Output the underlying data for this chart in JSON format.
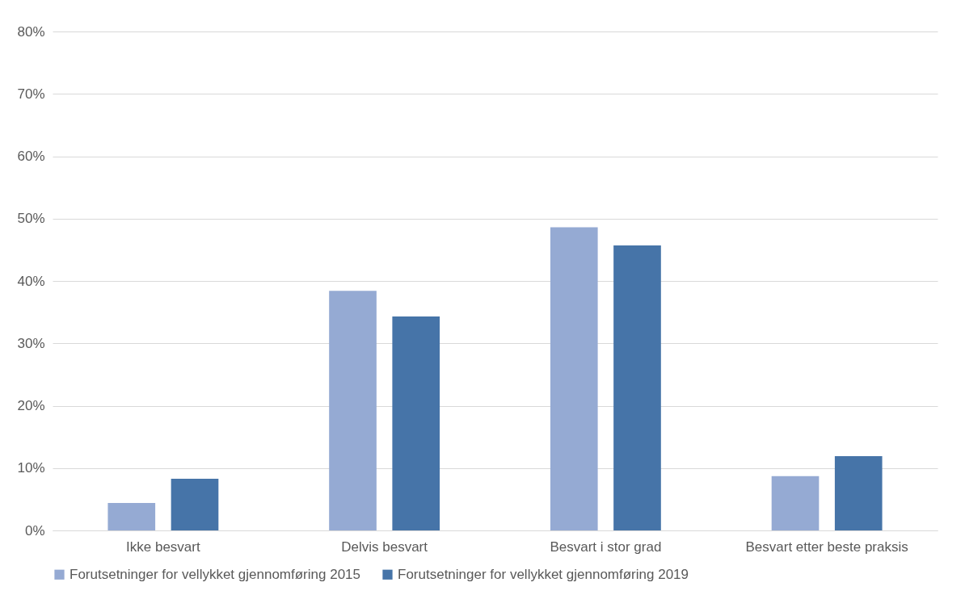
{
  "chart_data": {
    "type": "bar",
    "categories": [
      "Ikke besvart",
      "Delvis besvart",
      "Besvart i stor grad",
      "Besvart etter beste praksis"
    ],
    "series": [
      {
        "name": "Forutsetninger for vellykket gjennomføring  2015",
        "color": "#95aad3",
        "values": [
          4.4,
          38.4,
          48.6,
          8.7
        ]
      },
      {
        "name": "Forutsetninger for vellykket gjennomføring 2019",
        "color": "#4674a8",
        "values": [
          8.3,
          34.3,
          45.7,
          11.9
        ]
      }
    ],
    "ylim": [
      0,
      80
    ],
    "yticks": [
      {
        "value": 0,
        "label": "0%"
      },
      {
        "value": 10,
        "label": "10%"
      },
      {
        "value": 20,
        "label": "20%"
      },
      {
        "value": 30,
        "label": "30%"
      },
      {
        "value": 40,
        "label": "40%"
      },
      {
        "value": 50,
        "label": "50%"
      },
      {
        "value": 60,
        "label": "60%"
      },
      {
        "value": 70,
        "label": "70%"
      },
      {
        "value": 80,
        "label": "80%"
      }
    ],
    "grid": "y",
    "legend": "bottom"
  }
}
